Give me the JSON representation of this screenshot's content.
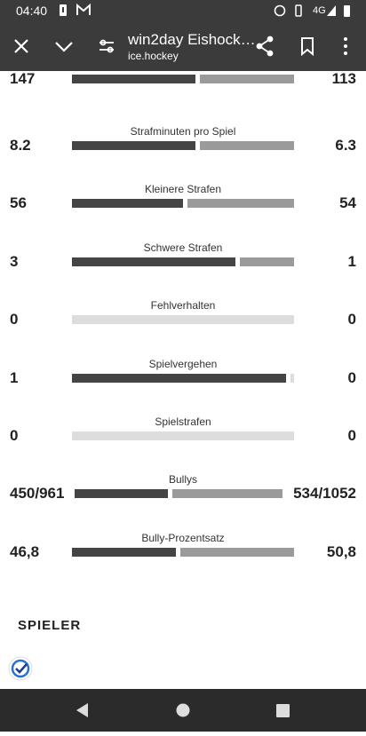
{
  "status_bar": {
    "time": "04:40",
    "network": "4G"
  },
  "toolbar": {
    "title": "win2day Eishock…",
    "url": "ice.hockey"
  },
  "stats": [
    {
      "left": "147",
      "right": "113"
    },
    {
      "label": "Strafminuten pro Spiel",
      "left": "8.2",
      "right": "6.3"
    },
    {
      "label": "Kleinere Strafen",
      "left": "56",
      "right": "54"
    },
    {
      "label": "Schwere Strafen",
      "left": "3",
      "right": "1"
    },
    {
      "label": "Fehlverhalten",
      "left": "0",
      "right": "0"
    },
    {
      "label": "Spielvergehen",
      "left": "1",
      "right": "0"
    },
    {
      "label": "Spielstrafen",
      "left": "0",
      "right": "0"
    },
    {
      "label": "Bullys",
      "left": "450/961",
      "right": "534/1052"
    },
    {
      "label": "Bully-Prozentsatz",
      "left": "46,8",
      "right": "50,8"
    }
  ],
  "section": {
    "title": "SPIELER"
  }
}
